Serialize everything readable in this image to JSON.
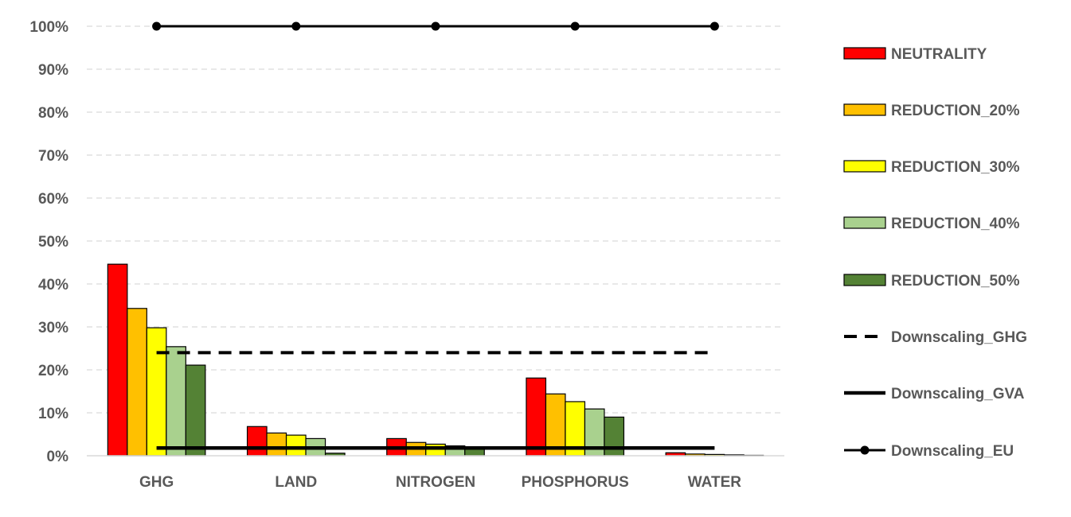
{
  "chart_data": {
    "type": "bar",
    "categories": [
      "GHG",
      "LAND",
      "NITROGEN",
      "PHOSPHORUS",
      "WATER"
    ],
    "ylim": [
      0,
      100
    ],
    "yticks": [
      "0%",
      "10%",
      "20%",
      "30%",
      "40%",
      "50%",
      "60%",
      "70%",
      "80%",
      "90%",
      "100%"
    ],
    "grid": true,
    "legend_position": "right",
    "series": [
      {
        "name": "NEUTRALITY",
        "color": "#ff0000",
        "values": [
          44.6,
          6.8,
          4.0,
          18.1,
          0.7
        ]
      },
      {
        "name": "REDUCTION_20%",
        "color": "#ffc000",
        "values": [
          34.3,
          5.3,
          3.1,
          14.4,
          0.4
        ]
      },
      {
        "name": "REDUCTION_30%",
        "color": "#ffff00",
        "values": [
          29.8,
          4.8,
          2.7,
          12.6,
          0.3
        ]
      },
      {
        "name": "REDUCTION_40%",
        "color": "#a9d18e",
        "values": [
          25.4,
          4.0,
          2.3,
          10.9,
          0.2
        ]
      },
      {
        "name": "REDUCTION_50%",
        "color": "#548235",
        "values": [
          21.1,
          0.6,
          2.0,
          9.0,
          0.1
        ]
      }
    ],
    "lines": [
      {
        "name": "Downscaling_GHG",
        "style": "dashed",
        "color": "#000000",
        "values": [
          24,
          24,
          24,
          24,
          24
        ]
      },
      {
        "name": "Downscaling_GVA",
        "style": "solid",
        "color": "#000000",
        "values": [
          1.8,
          1.8,
          1.8,
          1.8,
          1.8
        ]
      },
      {
        "name": "Downscaling_EU",
        "style": "solid-markers",
        "color": "#000000",
        "values": [
          100,
          100,
          100,
          100,
          100
        ]
      }
    ]
  }
}
